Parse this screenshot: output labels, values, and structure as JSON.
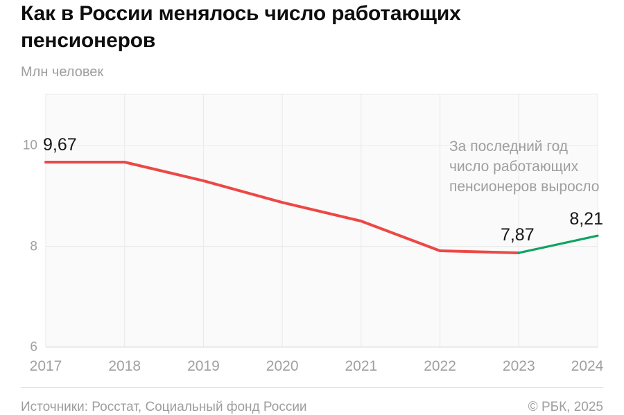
{
  "header": {
    "title": "Как в России менялось число работающих\nпенсионеров",
    "subtitle": "Млн человек"
  },
  "chart_data": {
    "type": "line",
    "title": "Как в России менялось число работающих пенсионеров",
    "ylabel": "Млн человек",
    "x": [
      2017,
      2018,
      2019,
      2020,
      2021,
      2022,
      2023,
      2024
    ],
    "series": [
      {
        "name": "decline-2017-2023",
        "color": "#ec4845",
        "x": [
          2017,
          2018,
          2019,
          2020,
          2021,
          2022,
          2023
        ],
        "values": [
          9.67,
          9.67,
          9.3,
          8.87,
          8.5,
          7.91,
          7.87
        ]
      },
      {
        "name": "growth-2023-2024",
        "color": "#10a263",
        "x": [
          2023,
          2024
        ],
        "values": [
          7.87,
          8.21
        ]
      }
    ],
    "point_labels": [
      {
        "x": 2017,
        "value": 9.67,
        "text": "9,67"
      },
      {
        "x": 2023,
        "value": 7.87,
        "text": "7,87"
      },
      {
        "x": 2024,
        "value": 8.21,
        "text": "8,21"
      }
    ],
    "y_ticks": [
      10,
      8,
      6
    ],
    "ylim": [
      6,
      11.0
    ],
    "grid": true,
    "legend": "none",
    "annotation": "За последний год\nчисло работающих\nпенсионеров выросло",
    "colors": {
      "decline": "#ec4845",
      "growth": "#10a263",
      "grid": "#e9e9e9",
      "axis": "#d9d9d9",
      "plot_bg": "#fafafa"
    }
  },
  "footer": {
    "sources": "Источники: Росстат, Социальный фонд России",
    "copyright": "© РБК, 2025"
  }
}
